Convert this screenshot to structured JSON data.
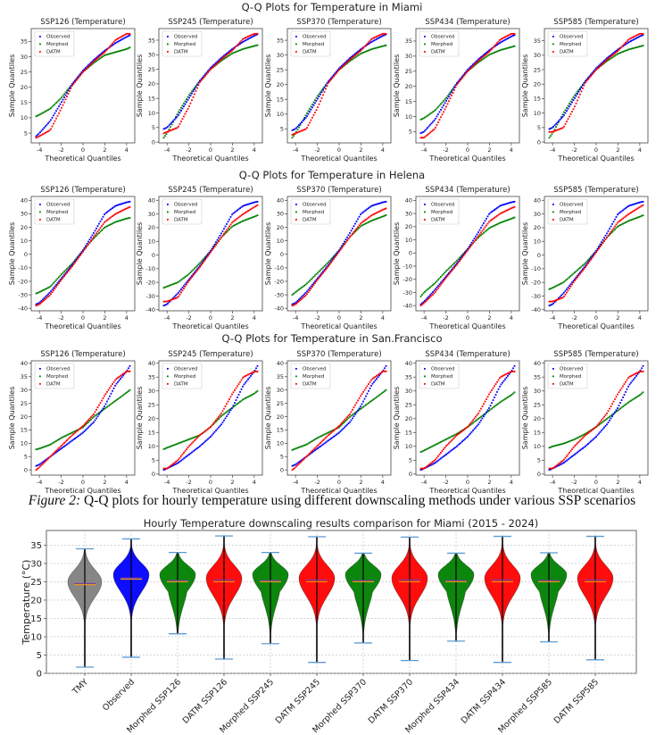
{
  "caption": {
    "label": "Figure 2:",
    "text": " Q-Q plots for hourly temperature using different downscaling methods under various SSP scenarios"
  },
  "colors": {
    "Observed": "#0000ff",
    "Morphed": "#008000",
    "DATM": "#ff0000",
    "TMY": "#808080",
    "caps": "#5b9bd5",
    "median": "#ffa500",
    "mean": "#7b3f9e"
  },
  "chart_data": [
    {
      "type": "scatter",
      "title": "Q-Q Plots for Temperature in Miami",
      "xlabel": "Theoretical Quantiles",
      "ylabel": "Sample Quantiles",
      "xticks": [
        -4,
        -2,
        0,
        2,
        4
      ],
      "legend": [
        "Observed",
        "Morphed",
        "DATM"
      ],
      "legend_position": "upper-left",
      "q": [
        -4.3,
        -4,
        -3,
        -2,
        -1,
        0,
        1,
        2,
        3,
        4,
        4.3
      ],
      "panels": [
        {
          "title": "SSP126 (Temperature)",
          "yticks": [
            5,
            10,
            15,
            20,
            25,
            30,
            35
          ],
          "Observed": [
            4,
            5,
            9,
            15,
            21,
            25.5,
            29,
            32,
            34.5,
            36.5,
            37
          ],
          "Morphed": [
            10.5,
            11,
            13,
            16.5,
            21,
            25,
            28,
            30.5,
            31.5,
            32.5,
            33
          ],
          "DATM": [
            3.5,
            4,
            6,
            13,
            20.5,
            25,
            28.5,
            31.5,
            35.5,
            37.5,
            37.5
          ]
        },
        {
          "title": "SSP245 (Temperature)",
          "yticks": [
            0,
            5,
            10,
            15,
            20,
            25,
            30,
            35
          ],
          "Observed": [
            4.5,
            5,
            9,
            15,
            21,
            25.5,
            29,
            32,
            34.5,
            36.5,
            37
          ],
          "Morphed": [
            1.5,
            3,
            10,
            16,
            21,
            25,
            28,
            30.5,
            32,
            33,
            33.3
          ],
          "DATM": [
            3,
            3.5,
            5,
            12,
            20.5,
            25,
            28.5,
            31.5,
            35.5,
            37.2,
            37.2
          ]
        },
        {
          "title": "SSP370 (Temperature)",
          "yticks": [
            0,
            5,
            10,
            15,
            20,
            25,
            30,
            35
          ],
          "Observed": [
            4.5,
            5,
            9,
            15,
            21,
            25.5,
            29,
            32,
            34.5,
            36.5,
            37
          ],
          "Morphed": [
            2,
            3.5,
            10,
            16,
            21,
            25,
            28,
            30.5,
            32,
            33,
            33.3
          ],
          "DATM": [
            3,
            3.5,
            5,
            12,
            20.5,
            25,
            28.5,
            31.5,
            35.5,
            37.2,
            37.2
          ]
        },
        {
          "title": "SSP434 (Temperature)",
          "yticks": [
            5,
            10,
            15,
            20,
            25,
            30,
            35
          ],
          "Observed": [
            4.5,
            5,
            9,
            15,
            21,
            25.5,
            29,
            32,
            34.5,
            36.5,
            37
          ],
          "Morphed": [
            9,
            9.5,
            12,
            16,
            21,
            25,
            28,
            30.5,
            32,
            33,
            33.3
          ],
          "DATM": [
            3,
            3,
            6,
            13,
            20.5,
            25,
            28.5,
            31.5,
            35.5,
            37.4,
            37.4
          ]
        },
        {
          "title": "SSP585 (Temperature)",
          "yticks": [
            0,
            5,
            10,
            15,
            20,
            25,
            30,
            35
          ],
          "Observed": [
            4.5,
            5,
            9,
            15,
            21,
            25.5,
            29,
            32,
            34.5,
            36.5,
            37
          ],
          "Morphed": [
            1.5,
            3,
            10,
            16,
            21,
            25,
            28,
            30.5,
            32,
            33,
            33.3
          ],
          "DATM": [
            3.5,
            3.5,
            5,
            12,
            20.5,
            25,
            28.5,
            31.5,
            35.5,
            37.4,
            37.4
          ]
        }
      ]
    },
    {
      "type": "scatter",
      "title": "Q-Q Plots for Temperature in Helena",
      "xlabel": "Theoretical Quantiles",
      "ylabel": "Sample Quantiles",
      "xticks": [
        -4,
        -2,
        0,
        2,
        4
      ],
      "legend": [
        "Observed",
        "Morphed",
        "DATM"
      ],
      "legend_position": "upper-left",
      "q": [
        -4.3,
        -4,
        -3,
        -2,
        -1,
        0,
        1,
        2,
        3,
        4,
        4.3
      ],
      "panels": [
        {
          "title": "SSP126 (Temperature)",
          "yticks": [
            -40,
            -30,
            -20,
            -10,
            0,
            10,
            20,
            30,
            40
          ],
          "Observed": [
            -37,
            -36,
            -28,
            -18,
            -8,
            3,
            16,
            30,
            36,
            38.5,
            39
          ],
          "Morphed": [
            -29,
            -28,
            -24,
            -15,
            -7,
            3,
            12,
            20,
            24,
            26.5,
            27
          ],
          "DATM": [
            -38,
            -37,
            -30,
            -19,
            -9,
            2,
            13,
            24,
            30,
            34,
            35
          ]
        },
        {
          "title": "SSP245 (Temperature)",
          "yticks": [
            -40,
            -30,
            -20,
            -10,
            0,
            10,
            20,
            30,
            40
          ],
          "Observed": [
            -37,
            -36,
            -28,
            -18,
            -8,
            3,
            16,
            30,
            36,
            38.5,
            39
          ],
          "Morphed": [
            -24,
            -23,
            -20,
            -14,
            -6,
            3,
            13,
            21,
            25,
            28,
            29
          ],
          "DATM": [
            -34,
            -34,
            -31,
            -19,
            -9,
            2,
            13,
            24,
            30,
            35,
            36.5
          ]
        },
        {
          "title": "SSP370 (Temperature)",
          "yticks": [
            -40,
            -30,
            -20,
            -10,
            0,
            10,
            20,
            30,
            40
          ],
          "Observed": [
            -37,
            -36,
            -28,
            -18,
            -8,
            3,
            16,
            30,
            36,
            38.5,
            39
          ],
          "Morphed": [
            -30,
            -28,
            -22,
            -14,
            -6,
            3,
            13,
            21,
            25,
            28,
            29
          ],
          "DATM": [
            -38,
            -37,
            -30,
            -19,
            -9,
            2,
            13,
            23,
            29,
            33,
            34
          ]
        },
        {
          "title": "SSP434 (Temperature)",
          "yticks": [
            -40,
            -30,
            -20,
            -10,
            0,
            10,
            20,
            30,
            40
          ],
          "Observed": [
            -39,
            -37,
            -28,
            -18,
            -8,
            3,
            16,
            30,
            36,
            38.5,
            39
          ],
          "Morphed": [
            -33,
            -30,
            -23,
            -14,
            -6,
            3,
            12,
            19,
            23,
            26,
            27
          ],
          "DATM": [
            -40,
            -38,
            -30,
            -19,
            -9,
            2,
            13,
            24,
            30,
            34,
            35
          ]
        },
        {
          "title": "SSP585 (Temperature)",
          "yticks": [
            -40,
            -30,
            -20,
            -10,
            0,
            10,
            20,
            30,
            40
          ],
          "Observed": [
            -37,
            -36,
            -28,
            -18,
            -8,
            3,
            16,
            30,
            36,
            38.5,
            39
          ],
          "Morphed": [
            -25,
            -24,
            -20,
            -13,
            -6,
            3,
            13,
            21,
            25,
            28,
            29
          ],
          "DATM": [
            -34,
            -34,
            -31,
            -19,
            -9,
            2,
            13,
            24,
            30,
            35,
            36.5
          ]
        }
      ]
    },
    {
      "type": "scatter",
      "title": "Q-Q Plots for Temperature in San.Francisco",
      "xlabel": "Theoretical Quantiles",
      "ylabel": "Sample Quantiles",
      "xticks": [
        -4,
        -2,
        0,
        2,
        4
      ],
      "legend": [
        "Observed",
        "Morphed",
        "DATM"
      ],
      "legend_position": "upper-left",
      "q": [
        -4.3,
        -4,
        -3,
        -2,
        -1,
        0,
        1,
        2,
        3,
        4,
        4.3
      ],
      "panels": [
        {
          "title": "SSP126 (Temperature)",
          "yticks": [
            0,
            5,
            10,
            15,
            20,
            25,
            30,
            35,
            40
          ],
          "Observed": [
            1.5,
            2,
            5,
            8,
            11,
            14,
            18,
            24,
            32,
            37,
            39
          ],
          "Morphed": [
            7.7,
            8,
            9.5,
            12,
            14,
            16,
            20,
            23,
            26,
            29,
            30
          ],
          "DATM": [
            0,
            1,
            5,
            9,
            13,
            16.5,
            21,
            28,
            34,
            37,
            37
          ]
        },
        {
          "title": "SSP245 (Temperature)",
          "yticks": [
            0,
            5,
            10,
            15,
            20,
            25,
            30,
            35,
            40
          ],
          "Observed": [
            1.5,
            2,
            4,
            7,
            10,
            13.5,
            18,
            24,
            32,
            37,
            39
          ],
          "Morphed": [
            9,
            9.5,
            11,
            12.5,
            14,
            17,
            21,
            24,
            27,
            29,
            30
          ],
          "DATM": [
            2,
            2,
            5,
            10,
            14,
            17,
            22,
            29,
            35,
            37,
            37
          ]
        },
        {
          "title": "SSP370 (Temperature)",
          "yticks": [
            0,
            5,
            10,
            15,
            20,
            25,
            30,
            35,
            40
          ],
          "Observed": [
            1.5,
            2,
            5,
            8,
            11,
            14,
            18,
            24,
            32,
            37,
            39
          ],
          "Morphed": [
            7.5,
            8,
            9.5,
            12,
            14,
            16,
            20,
            23,
            26,
            29,
            30
          ],
          "DATM": [
            0,
            1,
            5,
            9,
            13,
            16.5,
            21,
            28,
            34,
            37,
            37
          ]
        },
        {
          "title": "SSP434 (Temperature)",
          "yticks": [
            0,
            5,
            10,
            15,
            20,
            25,
            30,
            35,
            40
          ],
          "Observed": [
            1.5,
            2,
            4,
            7,
            10,
            13.5,
            18,
            24,
            32,
            37,
            39
          ],
          "Morphed": [
            8,
            8.5,
            10.5,
            12.5,
            14.5,
            17,
            20,
            23,
            26,
            28.5,
            29.5
          ],
          "DATM": [
            2,
            2,
            5,
            10,
            14,
            17,
            22,
            29,
            35,
            37,
            37
          ]
        },
        {
          "title": "SSP585 (Temperature)",
          "yticks": [
            0,
            5,
            10,
            15,
            20,
            25,
            30,
            35,
            40
          ],
          "Observed": [
            1.5,
            2,
            4,
            7,
            10,
            13.5,
            18,
            24,
            32,
            37,
            39
          ],
          "Morphed": [
            9.5,
            10,
            11,
            12.5,
            14.5,
            17,
            20,
            23,
            26,
            28.5,
            29.5
          ],
          "DATM": [
            2,
            2,
            5,
            10,
            14,
            17,
            22,
            29,
            35,
            37,
            37
          ]
        }
      ]
    },
    {
      "type": "violin",
      "title": "Hourly Temperature downscaling results comparison for Miami (2015 - 2024)",
      "ylabel": "Temperature (°C)",
      "ylim": [
        0,
        39
      ],
      "yticks": [
        0,
        5,
        10,
        15,
        20,
        25,
        30,
        35
      ],
      "grid": true,
      "categories": [
        "TMY",
        "Observed",
        "Morphed SSP126",
        "DATM SSP126",
        "Morphed SSP245",
        "DATM SSP245",
        "Morphed SSP370",
        "DATM SSP370",
        "Morphed SSP434",
        "DATM SSP434",
        "Morphed SSP585",
        "DATM SSP585"
      ],
      "series_type": [
        "TMY",
        "Observed",
        "Morphed",
        "DATM",
        "Morphed",
        "DATM",
        "Morphed",
        "DATM",
        "Morphed",
        "DATM",
        "Morphed",
        "DATM"
      ],
      "min": [
        1.7,
        4.4,
        10.8,
        3.9,
        8.1,
        3.0,
        8.3,
        3.5,
        8.8,
        3.0,
        8.6,
        3.7
      ],
      "max": [
        34.0,
        36.7,
        33.0,
        37.5,
        33.0,
        37.3,
        32.8,
        37.2,
        32.8,
        37.4,
        32.9,
        37.4
      ],
      "median": [
        24.5,
        26.0,
        25.3,
        25.5,
        25.3,
        25.5,
        25.3,
        25.5,
        25.3,
        25.5,
        25.3,
        25.5
      ],
      "mean": [
        24.2,
        25.7,
        25.0,
        25.0,
        25.0,
        25.0,
        25.0,
        25.0,
        25.0,
        25.0,
        25.0,
        25.0
      ],
      "mode": [
        25,
        27,
        27,
        26,
        27,
        26,
        27,
        26,
        27,
        26,
        27,
        26
      ]
    }
  ]
}
